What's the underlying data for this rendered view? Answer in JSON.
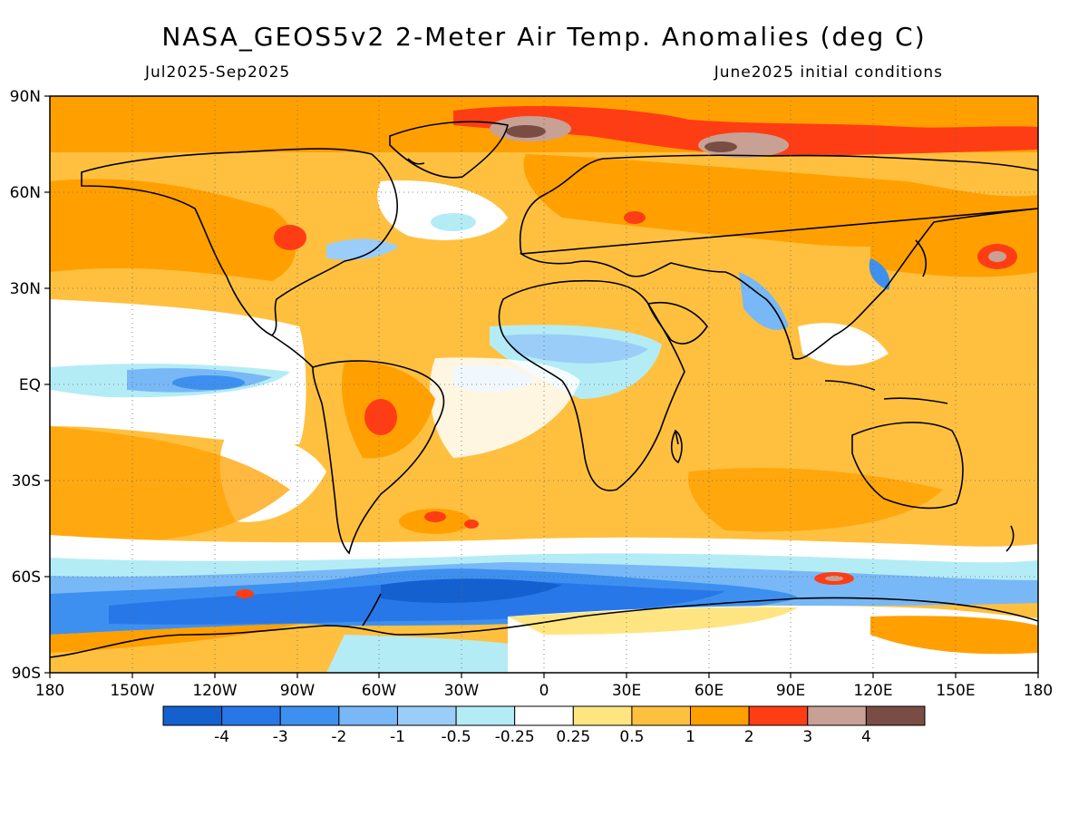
{
  "header": {
    "title": "NASA_GEOS5v2 2-Meter Air Temp. Anomalies (deg C)",
    "period": "Jul2025-Sep2025",
    "initial_conditions": "June2025 initial conditions"
  },
  "map": {
    "projection": "equirectangular",
    "lat_ticks": [
      "90N",
      "60N",
      "30N",
      "EQ",
      "30S",
      "60S",
      "90S"
    ],
    "lon_ticks": [
      "180",
      "150W",
      "120W",
      "90W",
      "60W",
      "30W",
      "0",
      "30E",
      "60E",
      "90E",
      "120E",
      "150E",
      "180"
    ],
    "gridlines": "dotted",
    "features": [
      {
        "name": "Arctic / Greenland Sea warm maximum",
        "value": "> 4"
      },
      {
        "name": "Siberian coast warm anomaly",
        "value": "3 to 4"
      },
      {
        "name": "Southern Ocean cool belt",
        "value": "-4 to -2"
      },
      {
        "name": "Equatorial Pacific cool tongue",
        "value": "-2 to -0.5"
      },
      {
        "name": "Sahel cool anomaly",
        "value": "-1 to -0.25"
      },
      {
        "name": "Interior South America warm anomaly",
        "value": "1 to 3"
      }
    ]
  },
  "colorbar": {
    "labels": [
      "-4",
      "-3",
      "-2",
      "-1",
      "-0.5",
      "-0.25",
      "0.25",
      "0.5",
      "1",
      "2",
      "3",
      "4"
    ],
    "colors": [
      "#1560cf",
      "#2877e8",
      "#3d90f0",
      "#78b8f6",
      "#9acdf7",
      "#b4ecf6",
      "#ffffff",
      "#ffe582",
      "#ffc040",
      "#ffa000",
      "#ff3d14",
      "#c8a094",
      "#7a4d44"
    ]
  }
}
